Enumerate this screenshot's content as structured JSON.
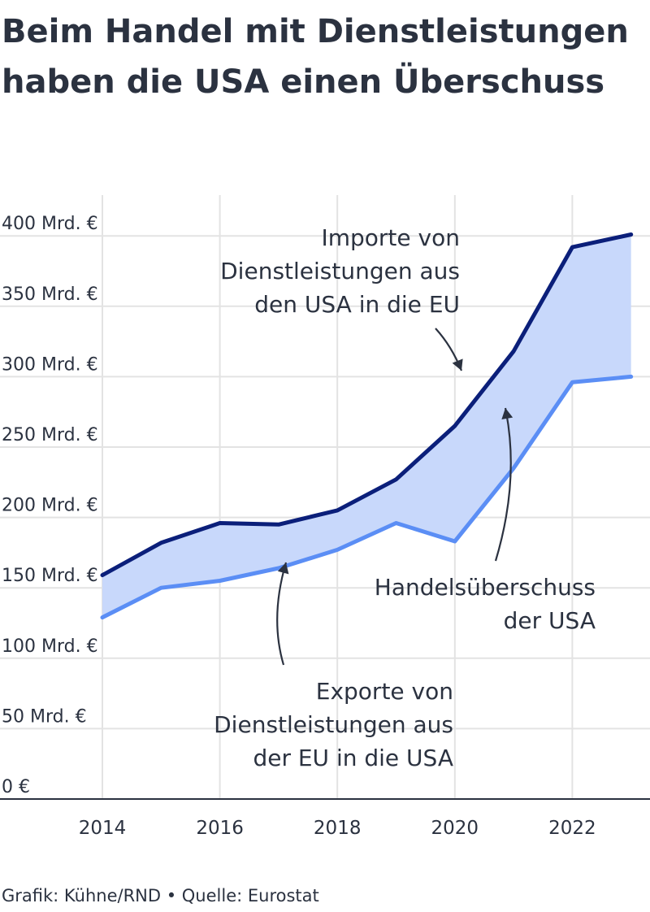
{
  "title": "Beim Handel mit Dienstleistungen haben die USA einen Überschuss",
  "source": "Grafik: Kühne/RND • Quelle: Eurostat",
  "chart_data": {
    "type": "line",
    "title": "Beim Handel mit Dienstleistungen haben die USA einen Überschuss",
    "x": [
      2014,
      2015,
      2016,
      2017,
      2018,
      2019,
      2020,
      2021,
      2022,
      2023
    ],
    "x_ticks": [
      2014,
      2016,
      2018,
      2020,
      2022
    ],
    "x_tick_labels": [
      "2014",
      "2016",
      "2018",
      "2020",
      "2022"
    ],
    "ylim": [
      0,
      420
    ],
    "y_ticks": [
      0,
      50,
      100,
      150,
      200,
      250,
      300,
      350,
      400
    ],
    "y_tick_labels": [
      "0 €",
      "50 Mrd. €",
      "100 Mrd. €",
      "150 Mrd. €",
      "200 Mrd. €",
      "250 Mrd. €",
      "300 Mrd. €",
      "350 Mrd. €",
      "400 Mrd. €"
    ],
    "grid": true,
    "legend": "none",
    "series": [
      {
        "key": "imports",
        "values": [
          159,
          182,
          196,
          195,
          205,
          227,
          265,
          318,
          392,
          401
        ],
        "color": "#0b1f7a"
      },
      {
        "key": "exports",
        "values": [
          129,
          150,
          155,
          164,
          177,
          196,
          183,
          235,
          296,
          300
        ],
        "color": "#5b8ef5"
      }
    ],
    "fill_between": {
      "color": "#c8d8fb"
    },
    "annotations": [
      {
        "key": "imports",
        "lines": [
          "Importe von",
          "Dienstleistungen aus",
          "den USA in die EU"
        ]
      },
      {
        "key": "surplus",
        "lines": [
          "Handelsüberschuss",
          "der USA"
        ]
      },
      {
        "key": "exports",
        "lines": [
          "Exporte von",
          "Dienstleistungen aus",
          "der EU in die USA"
        ]
      }
    ]
  }
}
